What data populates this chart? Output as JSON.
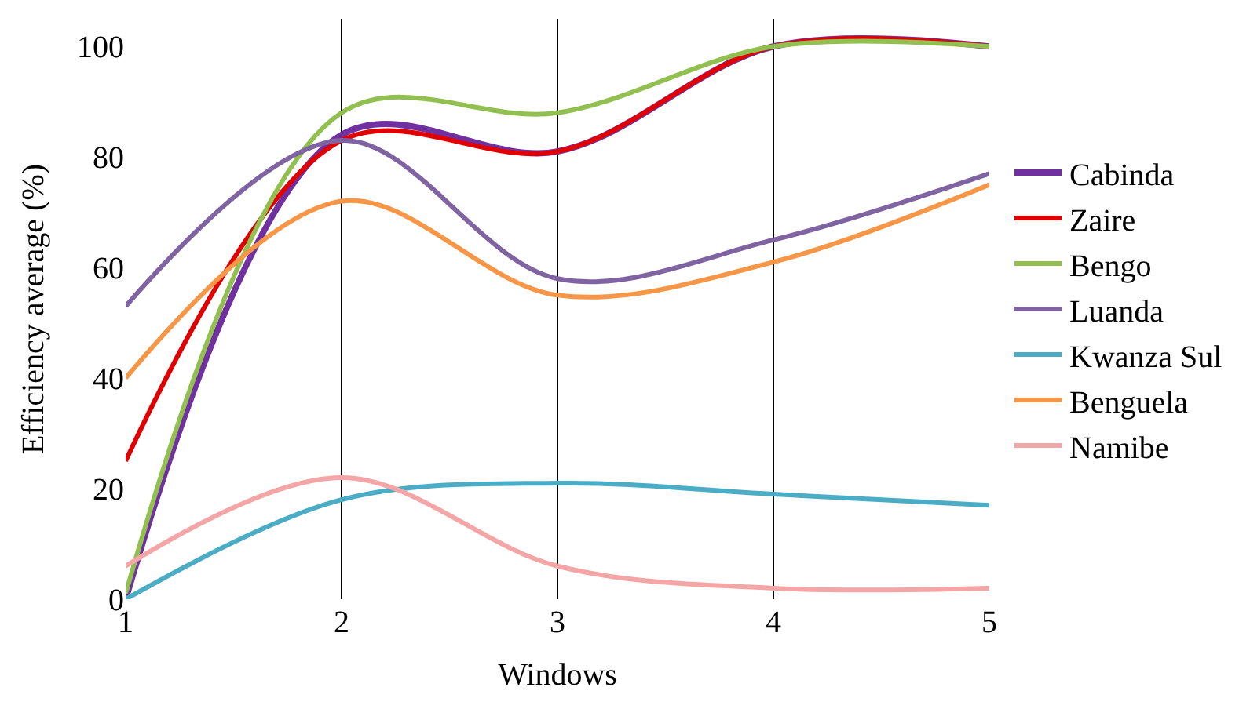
{
  "chart_data": {
    "type": "line",
    "xlabel": "Windows",
    "ylabel": "Efficiency average (%)",
    "x": [
      1,
      2,
      3,
      4,
      5
    ],
    "xlim": [
      1,
      5
    ],
    "xticks": [
      1,
      2,
      3,
      4,
      5
    ],
    "ylim": [
      0,
      105
    ],
    "yticks": [
      0,
      20,
      40,
      60,
      80,
      100
    ],
    "grid": "x",
    "legend": "right",
    "marker": "none",
    "series": [
      {
        "name": "Cabinda",
        "color": "#7030a0",
        "values": [
          0,
          84,
          81,
          100,
          100
        ]
      },
      {
        "name": "Zaire",
        "color": "#e00000",
        "values": [
          25,
          83,
          81,
          100,
          100
        ]
      },
      {
        "name": "Bengo",
        "color": "#92c050",
        "values": [
          1,
          88,
          88,
          100,
          100
        ]
      },
      {
        "name": "Luanda",
        "color": "#8064a2",
        "values": [
          53,
          83,
          58,
          65,
          77
        ]
      },
      {
        "name": "Kwanza Sul",
        "color": "#4bacc6",
        "values": [
          0,
          18,
          21,
          19,
          17
        ]
      },
      {
        "name": "Benguela",
        "color": "#f79646",
        "values": [
          40,
          72,
          55,
          61,
          75
        ]
      },
      {
        "name": "Namibe",
        "color": "#f4a6a6",
        "values": [
          6,
          22,
          6,
          2,
          2
        ]
      }
    ]
  }
}
